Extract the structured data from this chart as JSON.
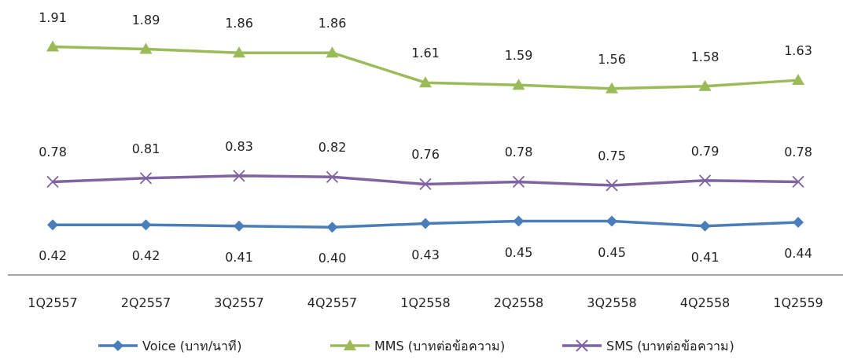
{
  "chart_data": {
    "type": "line",
    "categories": [
      "1Q2557",
      "2Q2557",
      "3Q2557",
      "4Q2557",
      "1Q2558",
      "2Q2558",
      "3Q2558",
      "4Q2558",
      "1Q2559"
    ],
    "series": [
      {
        "name": "Voice (บาท/นาที)",
        "color": "#4a7ebb",
        "marker": "diamond",
        "values": [
          0.42,
          0.42,
          0.41,
          0.4,
          0.43,
          0.45,
          0.45,
          0.41,
          0.44
        ],
        "value_labels": [
          "0.42",
          "0.42",
          "0.41",
          "0.40",
          "0.43",
          "0.45",
          "0.45",
          "0.41",
          "0.44"
        ]
      },
      {
        "name": "MMS (บาทต่อข้อความ)",
        "color": "#9bbb59",
        "marker": "triangle",
        "values": [
          1.91,
          1.89,
          1.86,
          1.86,
          1.61,
          1.59,
          1.56,
          1.58,
          1.63
        ],
        "value_labels": [
          "1.91",
          "1.89",
          "1.86",
          "1.86",
          "1.61",
          "1.59",
          "1.56",
          "1.58",
          "1.63"
        ]
      },
      {
        "name": "SMS (บาทต่อข้อความ)",
        "color": "#8064a2",
        "marker": "cross",
        "values": [
          0.78,
          0.81,
          0.83,
          0.82,
          0.76,
          0.78,
          0.75,
          0.79,
          0.78
        ],
        "value_labels": [
          "0.78",
          "0.81",
          "0.83",
          "0.82",
          "0.76",
          "0.78",
          "0.75",
          "0.79",
          "0.78"
        ]
      }
    ],
    "legend": "bottom",
    "grid": false,
    "tick_labels": "x"
  }
}
